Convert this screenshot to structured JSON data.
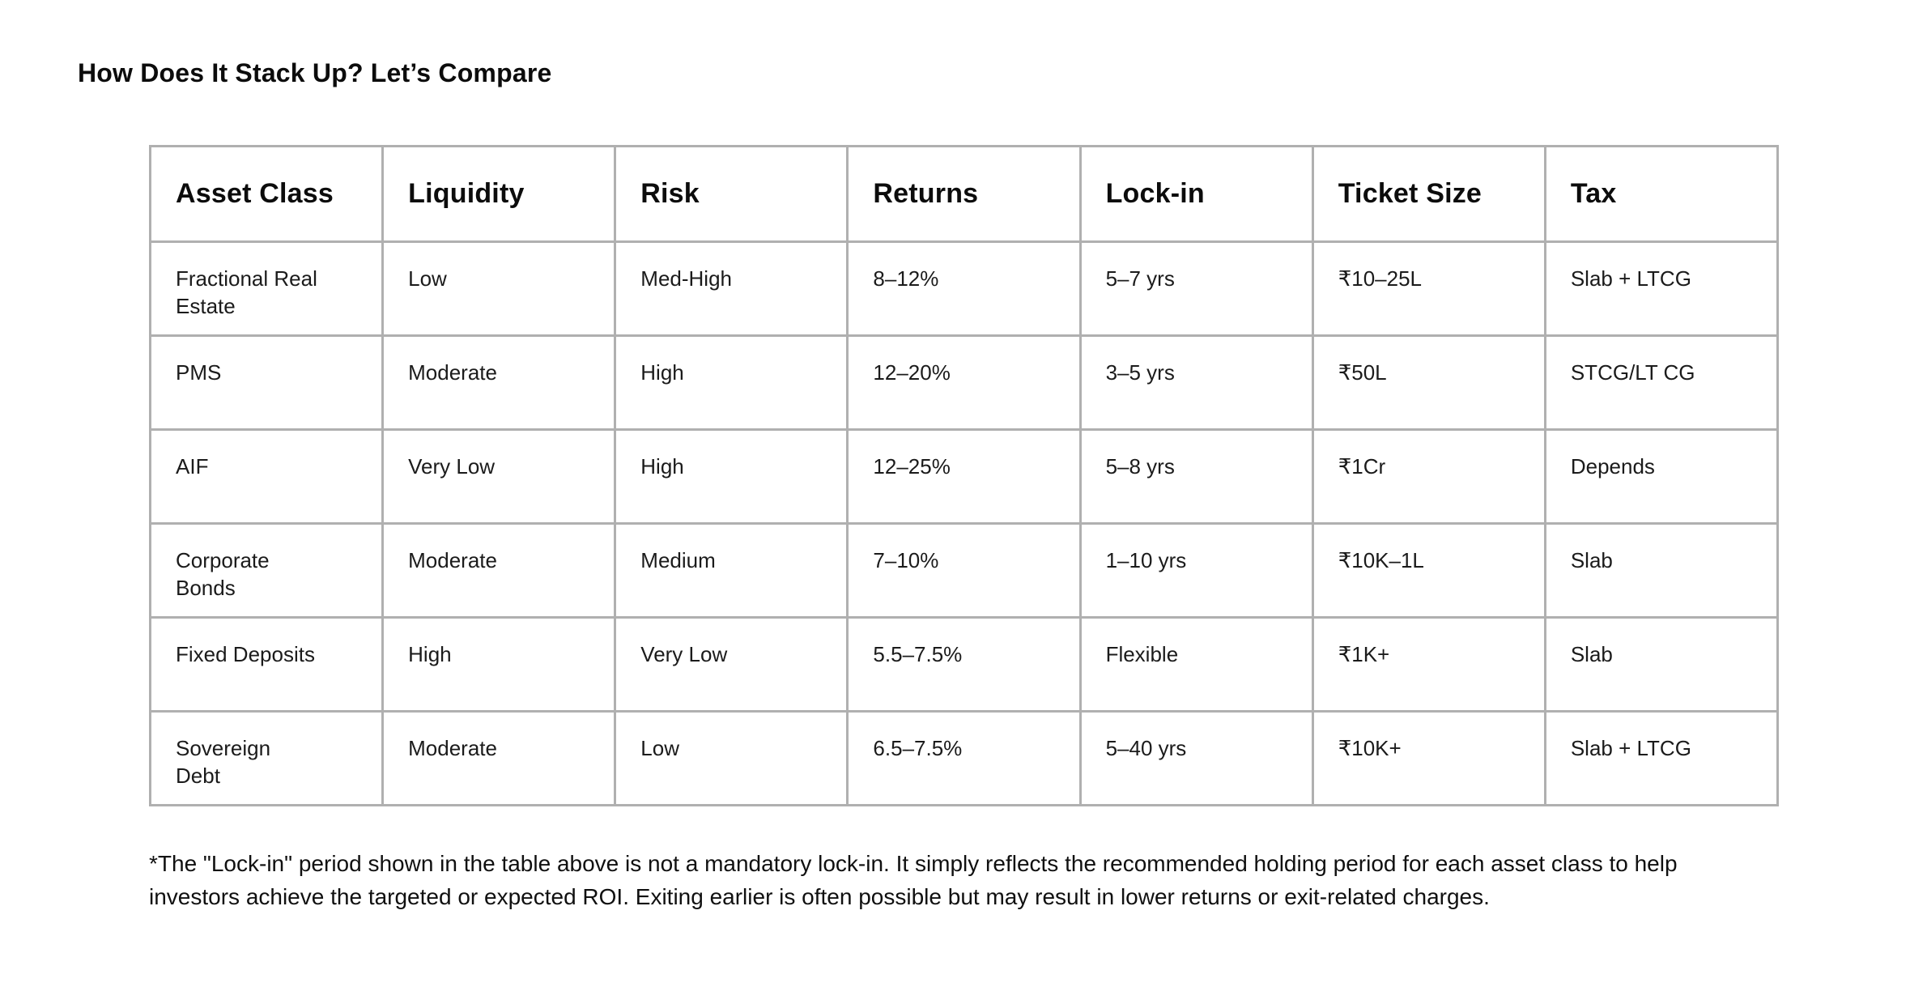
{
  "page": {
    "title": "How Does It Stack Up? Let’s Compare"
  },
  "table": {
    "columns": [
      "Asset Class",
      "Liquidity",
      "Risk",
      "Returns",
      "Lock-in",
      "Ticket Size",
      "Tax"
    ],
    "rows": [
      [
        "Fractional Real\nEstate",
        "Low",
        "Med-High",
        "8–12%",
        "5–7 yrs",
        "₹10–25L",
        "Slab + LTCG"
      ],
      [
        "PMS",
        "Moderate",
        "High",
        "12–20%",
        "3–5 yrs",
        "₹50L",
        "STCG/LT CG"
      ],
      [
        "AIF",
        "Very Low",
        "High",
        "12–25%",
        "5–8 yrs",
        "₹1Cr",
        "Depends"
      ],
      [
        "Corporate\nBonds",
        "Moderate",
        "Medium",
        "7–10%",
        "1–10 yrs",
        "₹10K–1L",
        "Slab"
      ],
      [
        "Fixed Deposits",
        "High",
        "Very Low",
        "5.5–7.5%",
        "Flexible",
        "₹1K+",
        "Slab"
      ],
      [
        "Sovereign\nDebt",
        "Moderate",
        "Low",
        "6.5–7.5%",
        "5–40 yrs",
        "₹10K+",
        "Slab + LTCG"
      ]
    ]
  },
  "footnote": {
    "text": "*The \"Lock-in\" period shown in the table above is not a mandatory lock-in. It simply reflects the recommended holding period for each asset class to help investors achieve the targeted or expected ROI. Exiting earlier is often possible but may result in lower returns or exit-related charges."
  }
}
